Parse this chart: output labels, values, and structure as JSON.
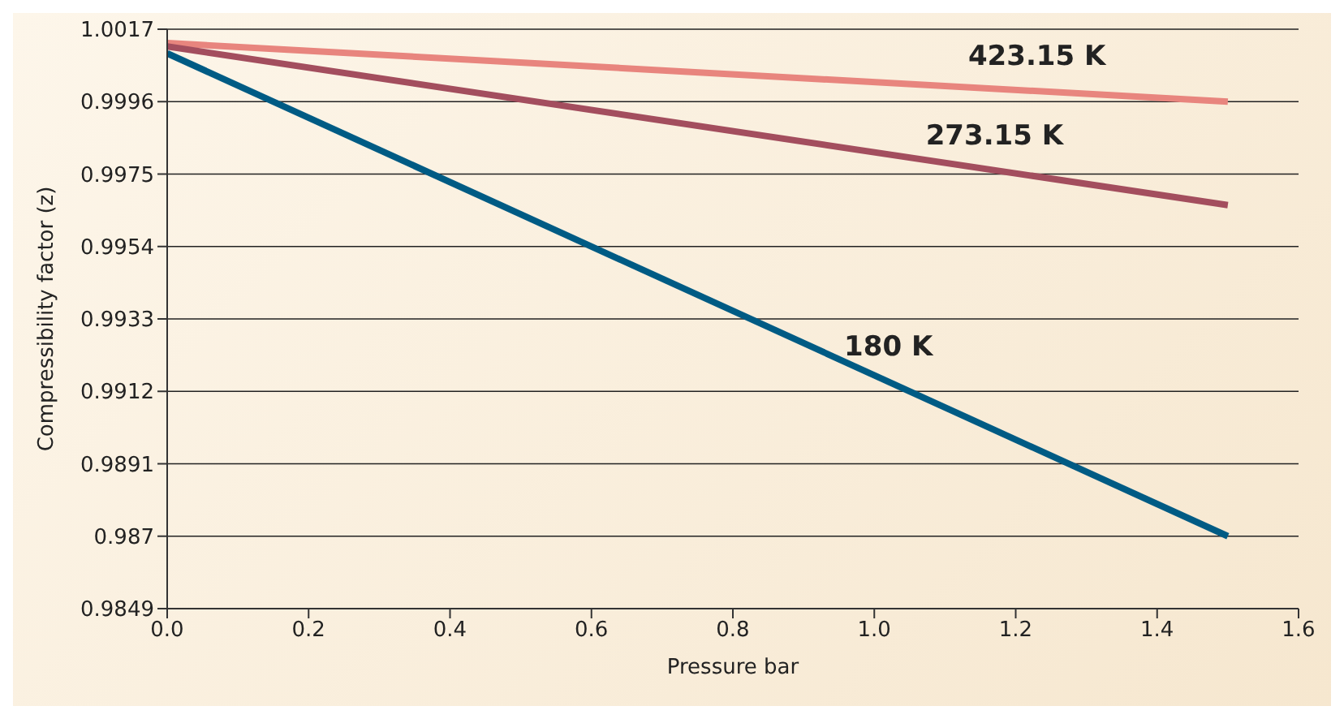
{
  "chart_data": {
    "type": "line",
    "xlabel": "Pressure bar",
    "ylabel": "Compressibility factor (z)",
    "x": [
      0,
      1.5
    ],
    "series": [
      {
        "name": "423.15 K",
        "color": "#e8857e",
        "values": [
          1.0013,
          0.9996
        ]
      },
      {
        "name": "273.15 K",
        "color": "#a34e5e",
        "values": [
          1.0012,
          0.9966
        ]
      },
      {
        "name": "180 K",
        "color": "#005b84",
        "values": [
          1.001,
          0.987
        ]
      }
    ],
    "xlim": [
      0,
      1.6
    ],
    "xticks": [
      {
        "value": 0,
        "label": "0.0"
      },
      {
        "value": 0.2,
        "label": "0.2"
      },
      {
        "value": 0.4,
        "label": "0.4"
      },
      {
        "value": 0.6,
        "label": "0.6"
      },
      {
        "value": 0.8,
        "label": "0.8"
      },
      {
        "value": 1,
        "label": "1.0"
      },
      {
        "value": 1.2,
        "label": "1.2"
      },
      {
        "value": 1.4,
        "label": "1.4"
      },
      {
        "value": 1.6,
        "label": "1.6"
      }
    ],
    "ylim": [
      0.9849,
      1.0017
    ],
    "yticks": [
      0.9849,
      0.987,
      0.9891,
      0.9912,
      0.9933,
      0.9954,
      0.9975,
      0.9996,
      1.0017
    ],
    "grid": "y",
    "marker": "none",
    "line_style": "solid"
  }
}
